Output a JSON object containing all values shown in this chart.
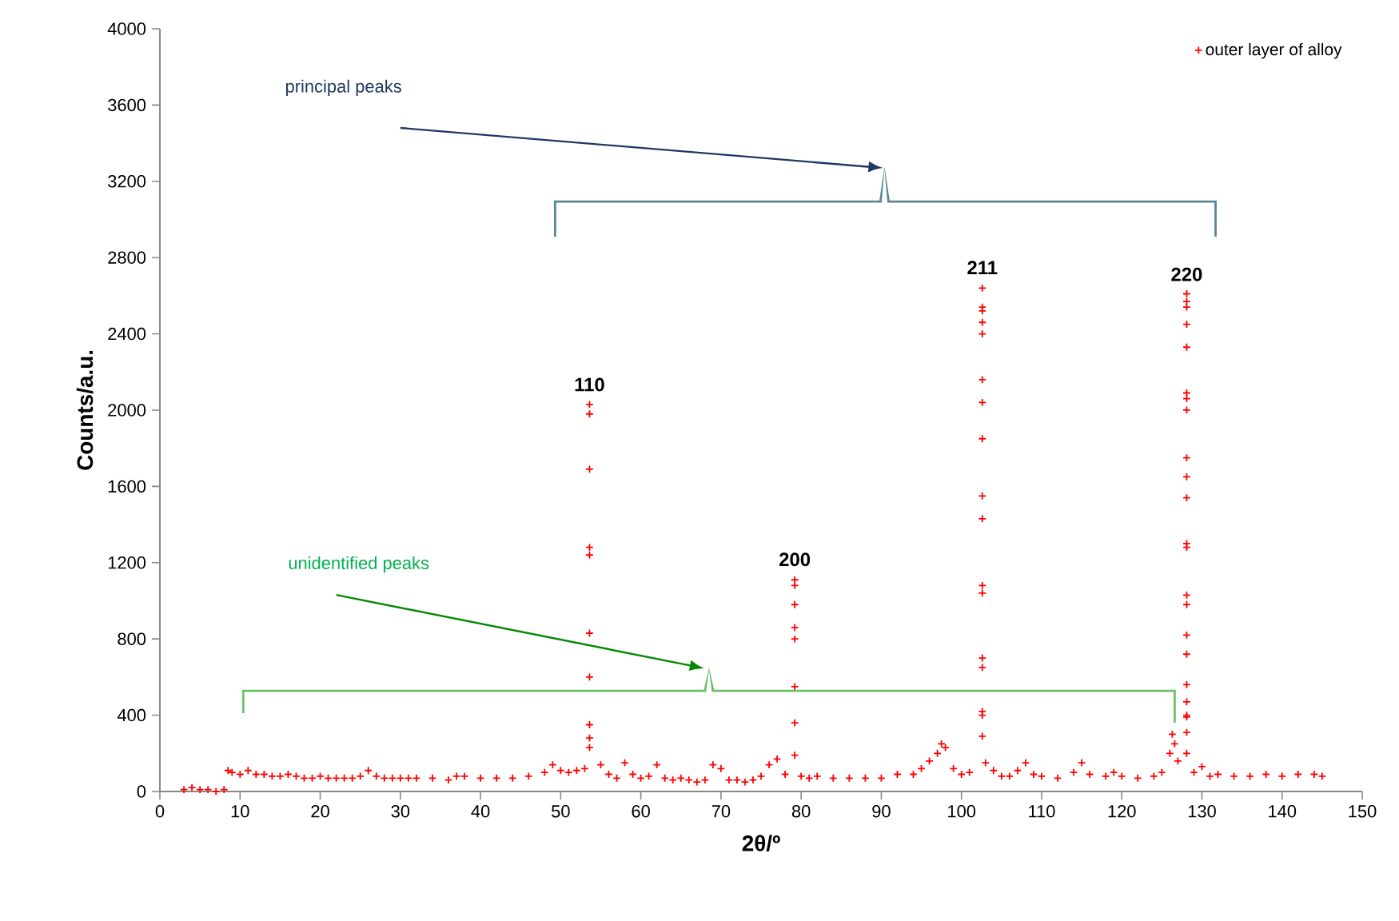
{
  "chart_data": {
    "type": "scatter",
    "xlabel": "2θ/º",
    "ylabel": "Counts/a.u.",
    "xlim": [
      0,
      150
    ],
    "xticks": [
      0,
      10,
      20,
      30,
      40,
      50,
      60,
      70,
      80,
      90,
      100,
      110,
      120,
      130,
      140,
      150
    ],
    "ylim": [
      0,
      4000
    ],
    "yticks": [
      0,
      400,
      800,
      1200,
      1600,
      2000,
      2400,
      2800,
      3200,
      3600,
      4000
    ],
    "grid": false,
    "legend": "top right",
    "marker": "cross",
    "series": [
      {
        "name": "outer layer of alloy",
        "color": "#ff0000",
        "x": [
          3,
          4,
          5,
          6,
          7,
          8,
          8.5,
          9,
          10,
          11,
          12,
          13,
          14,
          15,
          16,
          17,
          18,
          19,
          20,
          21,
          22,
          23,
          24,
          25,
          26,
          27,
          28,
          29,
          30,
          31,
          32,
          34,
          36,
          37,
          38,
          40,
          42,
          44,
          46,
          48,
          49,
          50,
          51,
          52,
          53,
          53.6,
          53.6,
          53.6,
          53.6,
          53.6,
          53.6,
          53.6,
          53.6,
          53.6,
          53.6,
          55,
          56,
          57,
          58,
          59,
          60,
          61,
          62,
          63,
          64,
          65,
          66,
          67,
          68,
          69,
          70,
          71,
          72,
          73,
          74,
          75,
          76,
          77,
          78,
          79.2,
          79.2,
          79.2,
          79.2,
          79.2,
          79.2,
          79.2,
          79.2,
          80,
          81,
          82,
          84,
          86,
          88,
          90,
          92,
          94,
          95,
          96,
          97,
          97.5,
          98,
          99,
          100,
          101,
          102.6,
          102.6,
          102.6,
          102.6,
          102.6,
          102.6,
          102.6,
          102.6,
          102.6,
          102.6,
          102.6,
          102.6,
          102.6,
          102.6,
          102.6,
          102.6,
          102.6,
          103,
          104,
          105,
          106,
          107,
          108,
          109,
          110,
          112,
          114,
          115,
          116,
          118,
          119,
          120,
          122,
          124,
          125,
          126,
          126.3,
          126.6,
          127,
          128.1,
          128.1,
          128.1,
          128.1,
          128.1,
          128.1,
          128.1,
          128.1,
          128.1,
          128.1,
          128.1,
          128.1,
          128.1,
          128.1,
          128.1,
          128.1,
          128.1,
          128.1,
          128.1,
          128.1,
          128.1,
          128.1,
          128.1,
          129,
          130,
          131,
          132,
          134,
          136,
          138,
          140,
          142,
          144,
          145
        ],
        "values": [
          10,
          20,
          10,
          10,
          0,
          10,
          110,
          100,
          90,
          110,
          90,
          90,
          80,
          80,
          90,
          80,
          70,
          70,
          80,
          70,
          70,
          70,
          70,
          80,
          110,
          80,
          70,
          70,
          70,
          70,
          70,
          70,
          60,
          80,
          80,
          70,
          70,
          70,
          80,
          100,
          140,
          110,
          100,
          110,
          120,
          2030,
          1980,
          1690,
          1280,
          1240,
          830,
          600,
          350,
          280,
          230,
          140,
          90,
          70,
          150,
          90,
          70,
          80,
          140,
          70,
          60,
          70,
          60,
          50,
          60,
          140,
          120,
          60,
          60,
          50,
          60,
          80,
          140,
          170,
          90,
          1110,
          1080,
          980,
          860,
          800,
          550,
          360,
          190,
          80,
          70,
          80,
          70,
          70,
          70,
          70,
          90,
          90,
          120,
          160,
          200,
          250,
          230,
          120,
          90,
          100,
          2640,
          2540,
          2520,
          2460,
          2400,
          2160,
          2040,
          1850,
          1550,
          1430,
          1080,
          1040,
          700,
          650,
          420,
          400,
          290,
          150,
          110,
          80,
          80,
          110,
          150,
          90,
          80,
          70,
          100,
          150,
          90,
          80,
          100,
          80,
          70,
          80,
          100,
          200,
          300,
          250,
          160,
          2610,
          2570,
          2540,
          2450,
          2330,
          2090,
          2060,
          2000,
          1750,
          1650,
          1540,
          1300,
          1280,
          1030,
          980,
          820,
          720,
          560,
          470,
          400,
          390,
          310,
          200,
          100,
          130,
          80,
          90,
          80,
          80,
          90,
          80,
          90,
          90,
          80
        ]
      }
    ],
    "annotations": [
      "principal peaks",
      "unidentified peaks",
      {
        "text": "110",
        "x": 53.6,
        "y": 2027
      },
      {
        "text": "200",
        "x": 79.2,
        "y": 1110
      },
      {
        "text": "211",
        "x": 102.6,
        "y": 2641
      },
      {
        "text": "220",
        "x": 128.1,
        "y": 2605
      }
    ]
  }
}
